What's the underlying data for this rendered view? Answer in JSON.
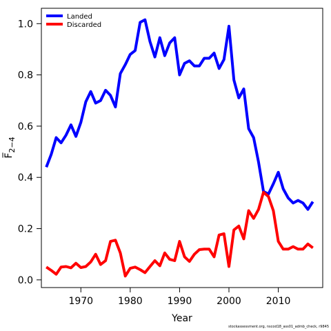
{
  "chart_data": {
    "type": "line",
    "xlabel": "Year",
    "ylabel": "F̅",
    "ylabel_sub": "2−4",
    "xlim": [
      1962,
      2019
    ],
    "ylim": [
      -0.03,
      1.06
    ],
    "x_ticks": [
      1970,
      1980,
      1990,
      2000,
      2010
    ],
    "y_ticks": [
      "0.0",
      "0.2",
      "0.4",
      "0.6",
      "0.8",
      "1.0"
    ],
    "legend_position": "top-left",
    "x": [
      1963,
      1964,
      1965,
      1966,
      1967,
      1968,
      1969,
      1970,
      1971,
      1972,
      1973,
      1974,
      1975,
      1976,
      1977,
      1978,
      1979,
      1980,
      1981,
      1982,
      1983,
      1984,
      1985,
      1986,
      1987,
      1988,
      1989,
      1990,
      1991,
      1992,
      1993,
      1994,
      1995,
      1996,
      1997,
      1998,
      1999,
      2000,
      2001,
      2002,
      2003,
      2004,
      2005,
      2006,
      2007,
      2008,
      2009,
      2010,
      2011,
      2012,
      2013,
      2014,
      2015,
      2016,
      2017
    ],
    "series": [
      {
        "name": "Landed",
        "color": "#0000ff",
        "values": [
          0.44,
          0.49,
          0.555,
          0.535,
          0.565,
          0.605,
          0.56,
          0.615,
          0.695,
          0.735,
          0.69,
          0.7,
          0.74,
          0.72,
          0.675,
          0.805,
          0.84,
          0.88,
          0.895,
          1.005,
          1.015,
          0.93,
          0.87,
          0.945,
          0.875,
          0.925,
          0.945,
          0.8,
          0.845,
          0.855,
          0.835,
          0.835,
          0.865,
          0.865,
          0.885,
          0.825,
          0.86,
          0.99,
          0.78,
          0.71,
          0.745,
          0.59,
          0.555,
          0.46,
          0.345,
          0.335,
          0.375,
          0.42,
          0.355,
          0.32,
          0.3,
          0.31,
          0.3,
          0.275,
          0.305
        ]
      },
      {
        "name": "Discarded",
        "color": "#ff0000",
        "values": [
          0.05,
          0.037,
          0.022,
          0.05,
          0.052,
          0.047,
          0.065,
          0.048,
          0.052,
          0.07,
          0.1,
          0.06,
          0.075,
          0.15,
          0.155,
          0.105,
          0.015,
          0.045,
          0.05,
          0.04,
          0.028,
          0.052,
          0.075,
          0.055,
          0.105,
          0.08,
          0.075,
          0.15,
          0.09,
          0.072,
          0.1,
          0.118,
          0.12,
          0.12,
          0.09,
          0.175,
          0.18,
          0.052,
          0.195,
          0.21,
          0.16,
          0.27,
          0.24,
          0.275,
          0.342,
          0.325,
          0.27,
          0.15,
          0.12,
          0.12,
          0.13,
          0.12,
          0.12,
          0.14,
          0.125
        ]
      }
    ]
  },
  "footer": {
    "text": "stockassessment.org, nscod18_ass01_admb_check, r9845"
  }
}
